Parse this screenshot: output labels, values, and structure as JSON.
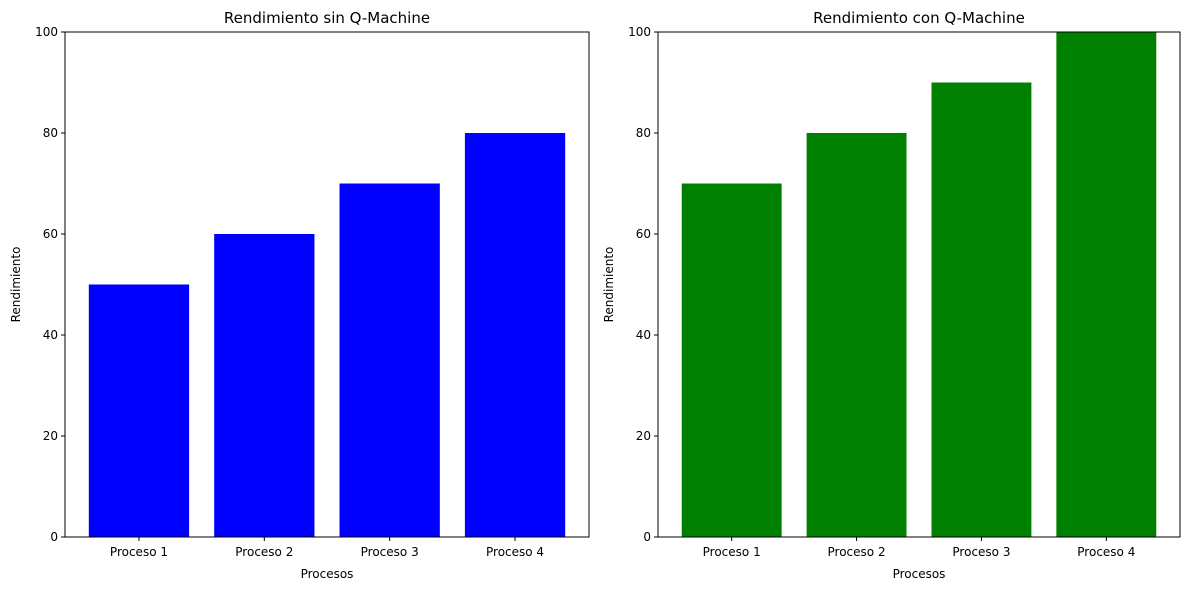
{
  "chart_data": [
    {
      "type": "bar",
      "title": "Rendimiento sin Q-Machine",
      "xlabel": "Procesos",
      "ylabel": "Rendimiento",
      "categories": [
        "Proceso 1",
        "Proceso 2",
        "Proceso 3",
        "Proceso 4"
      ],
      "values": [
        50,
        60,
        70,
        80
      ],
      "ylim": [
        0,
        100
      ],
      "yticks": [
        0,
        20,
        40,
        60,
        80,
        100
      ],
      "color": "#0000ff",
      "grid": false,
      "legend": false
    },
    {
      "type": "bar",
      "title": "Rendimiento con Q-Machine",
      "xlabel": "Procesos",
      "ylabel": "Rendimiento",
      "categories": [
        "Proceso 1",
        "Proceso 2",
        "Proceso 3",
        "Proceso 4"
      ],
      "values": [
        70,
        80,
        90,
        100
      ],
      "ylim": [
        0,
        100
      ],
      "yticks": [
        0,
        20,
        40,
        60,
        80,
        100
      ],
      "color": "#008000",
      "grid": false,
      "legend": false
    }
  ]
}
